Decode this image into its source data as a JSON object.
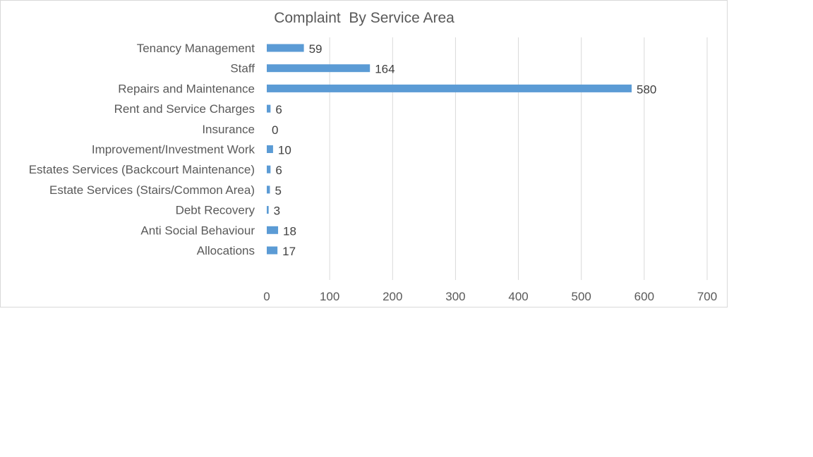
{
  "chart_data": {
    "type": "bar",
    "orientation": "horizontal",
    "title": "Complaint  By Service Area",
    "categories": [
      "Tenancy Management",
      "Staff",
      "Repairs and Maintenance",
      "Rent and Service Charges",
      "Insurance",
      "Improvement/Investment Work",
      "Estates Services (Backcourt Maintenance)",
      "Estate Services (Stairs/Common Area)",
      "Debt Recovery",
      "Anti Social Behaviour",
      "Allocations"
    ],
    "values": [
      59,
      164,
      580,
      6,
      0,
      10,
      6,
      5,
      3,
      18,
      17
    ],
    "xlim": [
      0,
      700
    ],
    "xticks": [
      0,
      100,
      200,
      300,
      400,
      500,
      600,
      700
    ],
    "xlabel": "",
    "ylabel": "",
    "grid": "vertical",
    "legend": "none",
    "bar_color": "#5b9bd5"
  }
}
